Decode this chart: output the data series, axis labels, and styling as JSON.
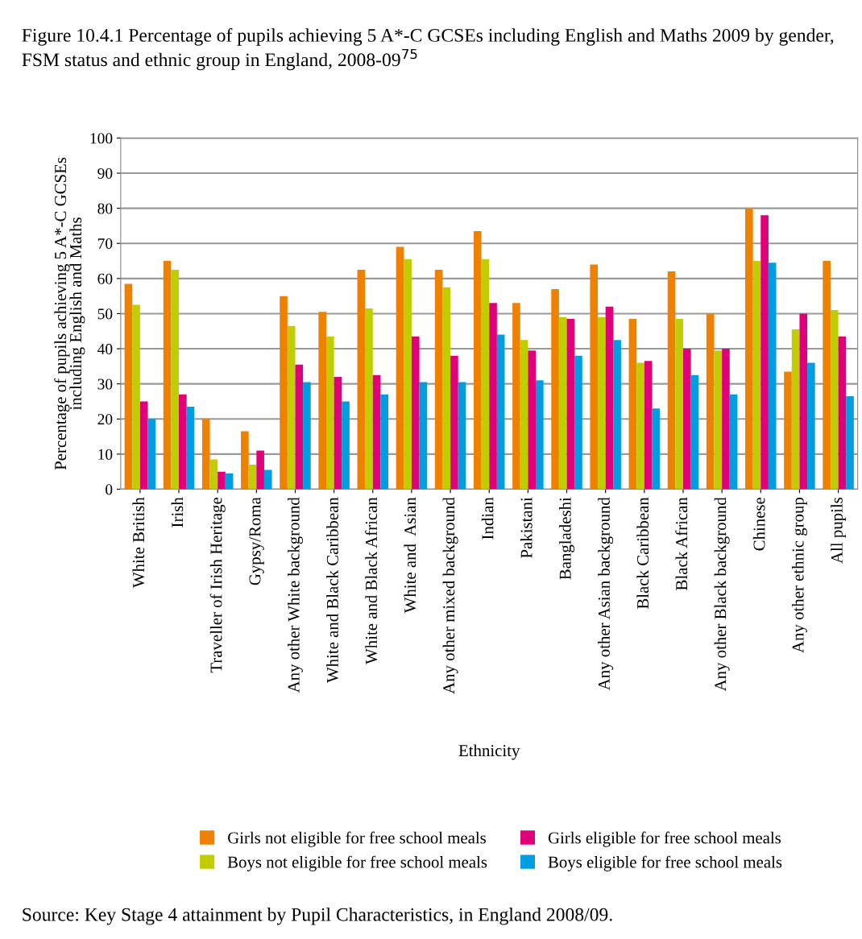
{
  "chart_data": {
    "type": "bar",
    "title": "Figure 10.4.1 Percentage of pupils achieving 5 A*-C GCSEs including English and Maths 2009 by gender, FSM status and ethnic group in England, 2008-09$^{75}$",
    "xlabel": "Ethnicity",
    "ylabel": "Percentage of pupils achieving 5 A*-C GCSEs\nincluding English and Maths",
    "categories": [
      "White British",
      "Irish",
      "Traveller of Irish Heritage",
      "Gypsy/Roma",
      "Any other White background",
      "White and Black Caribbean",
      "White and Black African",
      "White and  Asian",
      "Any other mixed background",
      "Indian",
      "Pakistani",
      "Bangladeshi",
      "Any other Asian background",
      "Black Caribbean",
      "Black African",
      "Any other Black background",
      "Chinese",
      "Any other ethnic group",
      "All pupils"
    ],
    "series": [
      {
        "name": "Girls not eligible for free school meals",
        "color": "#ee8100",
        "values": [
          58.5,
          65,
          20,
          16.5,
          55,
          50.5,
          62.5,
          69,
          62.5,
          73.5,
          53,
          57,
          64,
          48.5,
          62,
          50,
          80,
          33.5,
          65
        ]
      },
      {
        "name": "Boys not eligible for free school meals",
        "color": "#c1cd00",
        "values": [
          52.5,
          62.5,
          8.5,
          7,
          46.5,
          43.5,
          51.5,
          65.5,
          57.5,
          65.5,
          42.5,
          49,
          49,
          36,
          48.5,
          39.5,
          65,
          45.5,
          51
        ]
      },
      {
        "name": "Girls eligible for free school meals",
        "color": "#e0007a",
        "values": [
          25,
          27,
          5,
          11,
          35.5,
          32,
          32.5,
          43.5,
          38,
          53,
          39.5,
          48.5,
          52,
          36.5,
          40,
          40,
          78,
          50,
          43.5
        ]
      },
      {
        "name": "Boys eligible for free school meals",
        "color": "#009ee0",
        "values": [
          20,
          23.5,
          4.5,
          5.5,
          30.5,
          25,
          27,
          30.5,
          30.5,
          44,
          31,
          38,
          42.5,
          23,
          32.5,
          27,
          64.5,
          36,
          26.5
        ]
      }
    ],
    "ylim": [
      0,
      100
    ],
    "yticks": [
      0,
      10,
      20,
      30,
      40,
      50,
      60,
      70,
      80,
      90,
      100
    ],
    "grid": "y",
    "legend": "bottom",
    "annotations": [
      "Source: Key Stage 4 attainment by Pupil Characteristics, in England 2008/09."
    ]
  }
}
